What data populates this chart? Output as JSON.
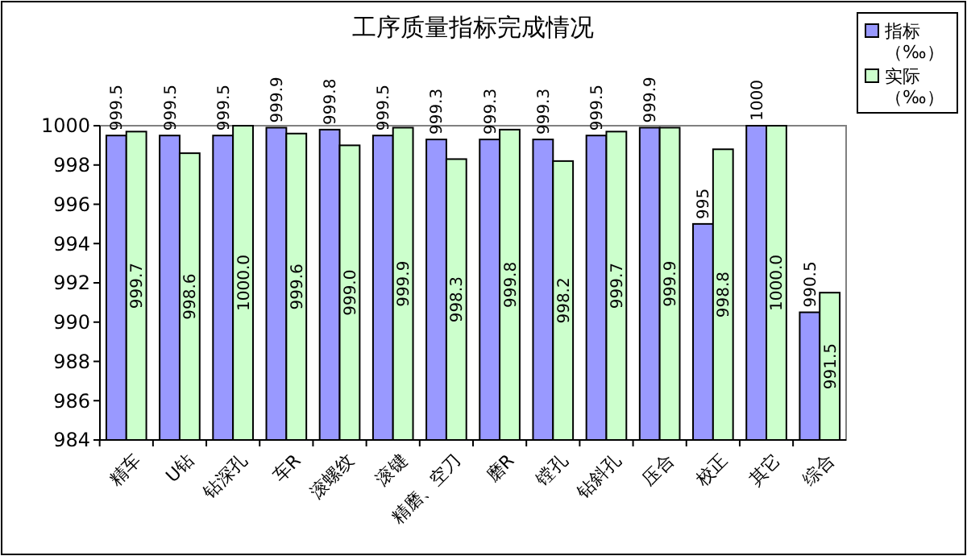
{
  "chart_data": {
    "type": "bar",
    "title": "工序质量指标完成情况",
    "categories": [
      "精车",
      "U钻",
      "钻深孔",
      "车R",
      "滚螺纹",
      "滚键",
      "精磨、空刀",
      "磨R",
      "镗孔",
      "钻斜孔",
      "压合",
      "校正",
      "其它",
      "综合"
    ],
    "series": [
      {
        "name": "指标（‰）",
        "color": "#9999ff",
        "values": [
          999.5,
          999.5,
          999.5,
          999.9,
          999.8,
          999.5,
          999.3,
          999.3,
          999.3,
          999.5,
          999.9,
          995,
          1000,
          990.5
        ],
        "value_labels": [
          "999.5",
          "999.5",
          "999.5",
          "999.9",
          "999.8",
          "999.5",
          "999.3",
          "999.3",
          "999.3",
          "999.5",
          "999.9",
          "995",
          "1000",
          "990.5"
        ]
      },
      {
        "name": "实际（‰）",
        "color": "#ccffcc",
        "values": [
          999.7,
          998.6,
          1000.0,
          999.6,
          999.0,
          999.9,
          998.3,
          999.8,
          998.2,
          999.7,
          999.9,
          998.8,
          1000.0,
          991.5
        ],
        "value_labels": [
          "999.7",
          "998.6",
          "1000.0",
          "999.6",
          "999.0",
          "999.9",
          "998.3",
          "999.8",
          "998.2",
          "999.7",
          "999.9",
          "998.8",
          "1000.0",
          "991.5"
        ]
      }
    ],
    "ylim": [
      984,
      1000
    ],
    "yticks": [
      984,
      986,
      988,
      990,
      992,
      994,
      996,
      998,
      1000
    ],
    "grid": false,
    "legend": "top right"
  }
}
